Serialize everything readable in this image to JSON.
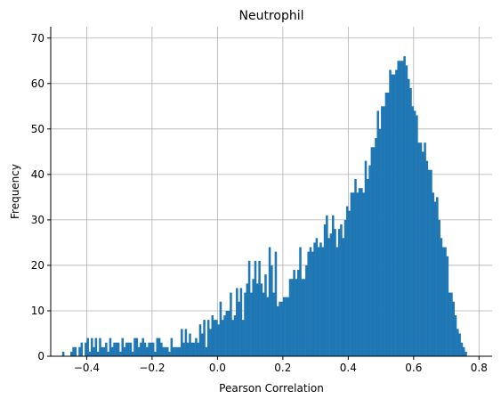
{
  "chart_data": {
    "type": "bar",
    "subtype": "histogram",
    "title": "Neutrophil",
    "xlabel": "Pearson Correlation",
    "ylabel": "Frequency",
    "xlim": [
      -0.51,
      0.84
    ],
    "ylim": [
      0,
      72.5
    ],
    "grid": true,
    "color": "#1f77b4",
    "xticks": [
      -0.4,
      -0.2,
      0.0,
      0.2,
      0.4,
      0.6,
      0.8
    ],
    "xtick_labels": [
      "−0.4",
      "−0.2",
      "0.0",
      "0.2",
      "0.4",
      "0.6",
      "0.8"
    ],
    "yticks": [
      0,
      10,
      20,
      30,
      40,
      50,
      60,
      70
    ],
    "ytick_labels": [
      "0",
      "10",
      "20",
      "30",
      "40",
      "50",
      "60",
      "70"
    ],
    "bin_width": 0.00625,
    "bin_edges_start": -0.475,
    "values": [
      1,
      0,
      0,
      0,
      1,
      2,
      2,
      0,
      2,
      3,
      0,
      3,
      4,
      1,
      4,
      2,
      4,
      1,
      4,
      2,
      2,
      3,
      1,
      4,
      2,
      3,
      3,
      3,
      1,
      4,
      2,
      3,
      3,
      3,
      1,
      4,
      4,
      2,
      3,
      4,
      3,
      2,
      3,
      3,
      3,
      1,
      4,
      4,
      3,
      2,
      2,
      2,
      1,
      4,
      2,
      2,
      2,
      2,
      6,
      3,
      6,
      3,
      5,
      3,
      3,
      4,
      3,
      7,
      5,
      8,
      2,
      8,
      6,
      9,
      8,
      8,
      7,
      12,
      8,
      9,
      10,
      10,
      14,
      8,
      9,
      15,
      12,
      15,
      8,
      14,
      16,
      21,
      14,
      17,
      21,
      16,
      21,
      16,
      14,
      18,
      13,
      24,
      20,
      14,
      23,
      11,
      12,
      12,
      13,
      13,
      13,
      17,
      17,
      19,
      17,
      19,
      24,
      17,
      17,
      20,
      23,
      24,
      23,
      25,
      26,
      24,
      25,
      24,
      29,
      31,
      26,
      27,
      31,
      28,
      24,
      28,
      29,
      26,
      30,
      33,
      32,
      36,
      36,
      39,
      36,
      37,
      37,
      36,
      43,
      39,
      42,
      46,
      46,
      48,
      54,
      50,
      55,
      55,
      58,
      58,
      63,
      62,
      62,
      63,
      65,
      65,
      65,
      66,
      64,
      61,
      59,
      55,
      54,
      53,
      47,
      47,
      45,
      47,
      43,
      41,
      41,
      36,
      34,
      35,
      30,
      26,
      24,
      24,
      22,
      14,
      14,
      12,
      9,
      6,
      5,
      3,
      2,
      1
    ],
    "values_note_resample": true
  }
}
